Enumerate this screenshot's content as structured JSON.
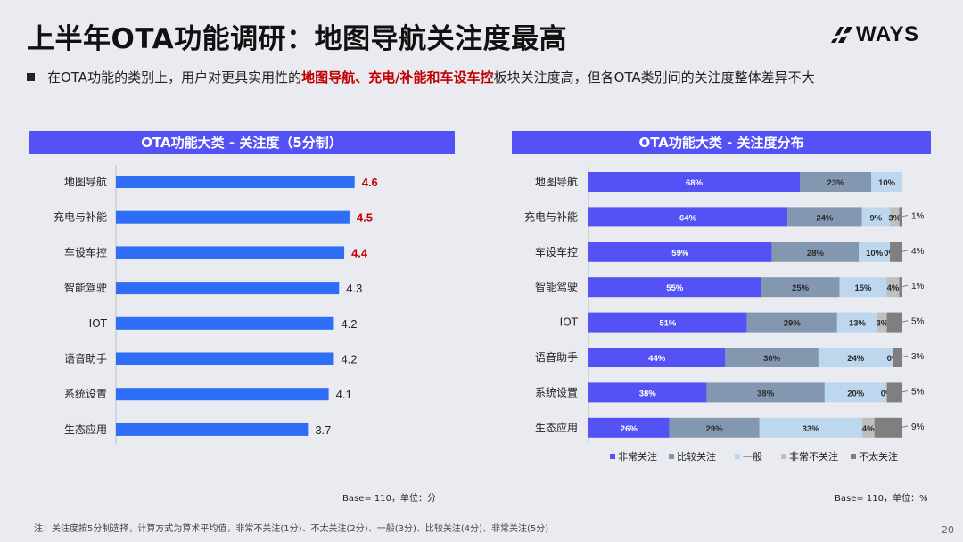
{
  "page": {
    "title": "上半年OTA功能调研：地图导航关注度最高",
    "logo_text": "WAYS",
    "subtitle_parts": [
      {
        "text": "在OTA功能的类别上，用户对更具实用性的",
        "hl": false
      },
      {
        "text": "地图导航、充电/补能和车设车控",
        "hl": true
      },
      {
        "text": "板块关注度高，但各OTA类别间的关注度整体差异不大",
        "hl": false
      }
    ],
    "footnote": "注：关注度按5分制选择，计算方式为算术平均值，非常不关注(1分)、不太关注(2分)、一般(3分)、比较关注(4分)、非常关注(5分)",
    "page_number": "20"
  },
  "colors": {
    "accent": "#5552f5",
    "bar": "#2e6df5",
    "highlight": "#c00000",
    "seg1": "#5552f5",
    "seg2": "#8497b0",
    "seg3": "#bdd7ee",
    "seg4": "#bfbfbf",
    "seg5": "#7f7f7f"
  },
  "chart_data": [
    {
      "type": "bar",
      "orientation": "horizontal",
      "title": "OTA功能大类 - 关注度（5分制）",
      "categories": [
        "地图导航",
        "充电与补能",
        "车设车控",
        "智能驾驶",
        "IOT",
        "语音助手",
        "系统设置",
        "生态应用"
      ],
      "values": [
        4.6,
        4.5,
        4.4,
        4.3,
        4.2,
        4.2,
        4.1,
        3.7
      ],
      "highlighted_labels": [
        "4.6",
        "4.5",
        "4.4"
      ],
      "base_note": "Base= 110，单位：分",
      "xlim": [
        0,
        5
      ]
    },
    {
      "type": "bar",
      "orientation": "horizontal",
      "stacked": true,
      "title": "OTA功能大类 - 关注度分布",
      "categories": [
        "地图导航",
        "充电与补能",
        "车设车控",
        "智能驾驶",
        "IOT",
        "语音助手",
        "系统设置",
        "生态应用"
      ],
      "series": [
        {
          "name": "非常关注",
          "values": [
            68,
            64,
            59,
            55,
            51,
            44,
            38,
            26
          ]
        },
        {
          "name": "比较关注",
          "values": [
            23,
            24,
            28,
            25,
            29,
            30,
            38,
            29
          ]
        },
        {
          "name": "一般",
          "values": [
            10,
            9,
            10,
            15,
            13,
            24,
            20,
            33
          ]
        },
        {
          "name": "非常不关注",
          "values": [
            0,
            3,
            0,
            4,
            3,
            0,
            0,
            4
          ]
        },
        {
          "name": "不太关注",
          "values": [
            0,
            1,
            4,
            1,
            5,
            3,
            5,
            9
          ]
        }
      ],
      "inside_labels": [
        [
          "68%",
          "23%",
          "10%",
          "",
          ""
        ],
        [
          "64%",
          "24%",
          "9%",
          "3%",
          ""
        ],
        [
          "59%",
          "28%",
          "10%",
          "0%",
          ""
        ],
        [
          "55%",
          "25%",
          "15%",
          "4%",
          ""
        ],
        [
          "51%",
          "29%",
          "13%",
          "3%",
          ""
        ],
        [
          "44%",
          "30%",
          "24%",
          "0%",
          ""
        ],
        [
          "38%",
          "38%",
          "20%",
          "0%",
          ""
        ],
        [
          "26%",
          "29%",
          "33%",
          "4%",
          ""
        ]
      ],
      "outside_labels": [
        "",
        "1%",
        "4%",
        "1%",
        "5%",
        "3%",
        "5%",
        "9%"
      ],
      "legend_position": "bottom",
      "base_note": "Base= 110，单位：%",
      "xlim": [
        0,
        100
      ]
    }
  ]
}
